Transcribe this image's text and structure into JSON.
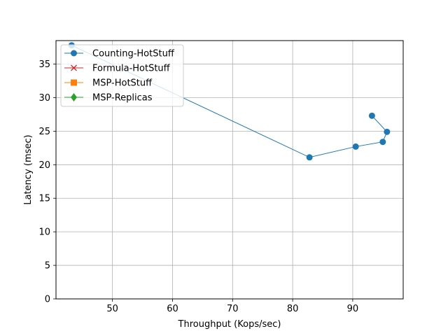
{
  "chart_data": {
    "type": "line",
    "title": "",
    "xlabel": "Throughput (Kops/sec)",
    "ylabel": "Latency (msec)",
    "xlim": [
      40.6,
      98.4
    ],
    "ylim": [
      0,
      38.5
    ],
    "xticks": [
      50,
      60,
      70,
      80,
      90
    ],
    "yticks": [
      0,
      5,
      10,
      15,
      20,
      25,
      30,
      35
    ],
    "grid": true,
    "legend_position": "top-left",
    "series": [
      {
        "name": "Counting-HotStuff",
        "color": "#1f77b4",
        "marker": "circle",
        "x": [
          43.2,
          82.8,
          90.5,
          95.0,
          95.7,
          93.2
        ],
        "y": [
          37.8,
          21.1,
          22.7,
          23.4,
          24.9,
          27.3
        ]
      },
      {
        "name": "Formula-HotStuff",
        "color": "#d62728",
        "marker": "x",
        "x": [],
        "y": []
      },
      {
        "name": "MSP-HotStuff",
        "color": "#ff7f0e",
        "marker": "square",
        "x": [],
        "y": []
      },
      {
        "name": "MSP-Replicas",
        "color": "#2ca02c",
        "marker": "diamond",
        "x": [],
        "y": []
      }
    ]
  }
}
